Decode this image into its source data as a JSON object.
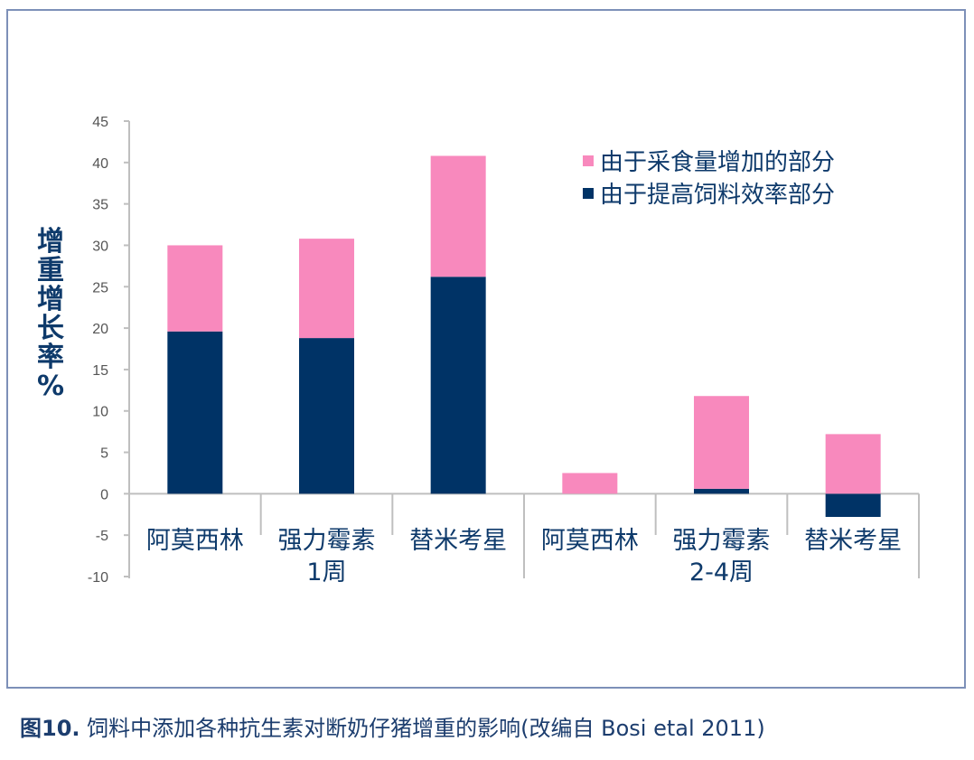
{
  "chart_data": {
    "type": "bar",
    "stacked": true,
    "categories": [
      "阿莫西林",
      "强力霉素",
      "替米考星",
      "阿莫西林",
      "强力霉素",
      "替米考星"
    ],
    "groups": [
      {
        "label": "1周",
        "categories": [
          0,
          1,
          2
        ]
      },
      {
        "label": "2-4周",
        "categories": [
          3,
          4,
          5
        ]
      }
    ],
    "series": [
      {
        "name": "由于提高饲料效率部分",
        "color": "#003366",
        "values": [
          19.6,
          18.8,
          26.2,
          0,
          0.6,
          -2.8
        ]
      },
      {
        "name": "由于采食量增加的部分",
        "color": "#f889bd",
        "values": [
          10.4,
          12.0,
          14.6,
          2.5,
          11.2,
          7.2
        ]
      }
    ],
    "ylabel": "增重增长率%",
    "ylim": [
      -10,
      45
    ],
    "yticks": [
      -10,
      -5,
      0,
      5,
      10,
      15,
      20,
      25,
      30,
      35,
      40,
      45
    ],
    "legend_position": "top-right",
    "grid": false
  },
  "ylabel_chars": [
    "增",
    "重",
    "增",
    "长",
    "率",
    "%"
  ],
  "caption": {
    "prefix": "图10.",
    "text": " 饲料中添加各种抗生素对断奶仔猪增重的影响(改编自 Bosi etal 2011)"
  }
}
